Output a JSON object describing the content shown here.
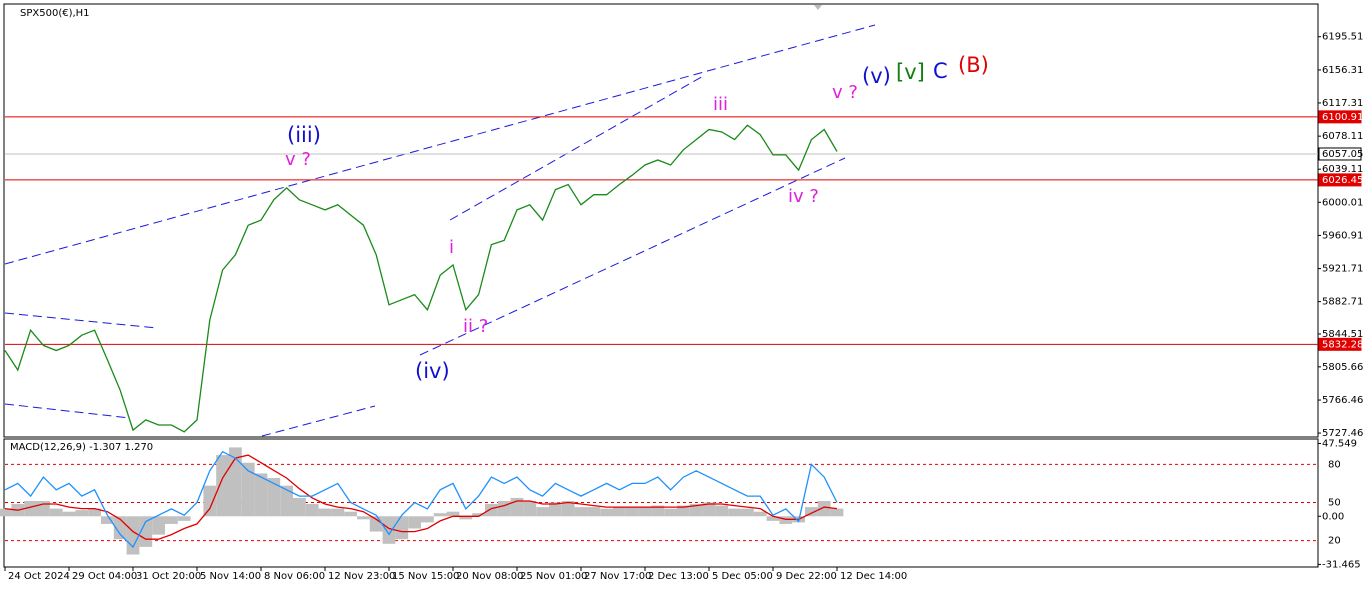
{
  "chart_data": [
    {
      "type": "line",
      "title": "SPX500(€),H1",
      "color": "#1a8a1a",
      "categories": [
        "24 Oct 2024",
        null,
        null,
        null,
        null,
        "29 Oct 04:00",
        null,
        null,
        null,
        null,
        "31 Oct 20:00",
        null,
        null,
        null,
        null,
        "5 Nov 14:00",
        null,
        null,
        null,
        null,
        "8 Nov 06:00",
        null,
        null,
        null,
        null,
        "12 Nov 23:00",
        null,
        null,
        null,
        null,
        "15 Nov 15:00",
        null,
        null,
        null,
        null,
        "20 Nov 08:00",
        null,
        null,
        null,
        null,
        "25 Nov 01:00",
        null,
        null,
        null,
        null,
        "27 Nov 17:00",
        null,
        null,
        null,
        null,
        "2 Dec 13:00",
        null,
        null,
        null,
        null,
        "5 Dec 05:00",
        null,
        null,
        null,
        null,
        "9 Dec 22:00",
        null,
        null,
        null,
        null,
        "12 Dec 14:00"
      ],
      "values": [
        5825,
        5802,
        5849,
        5831,
        5825,
        5831,
        5843,
        5849,
        5814,
        5778,
        5731,
        5743,
        5737,
        5737,
        5729,
        5743,
        5861,
        5920,
        5938,
        5973,
        5979,
        6003,
        6017,
        6003,
        5997,
        5991,
        5997,
        5985,
        5973,
        5938,
        5879,
        5885,
        5891,
        5873,
        5914,
        5926,
        5873,
        5891,
        5950,
        5955,
        5991,
        5997,
        5979,
        6015,
        6021,
        5997,
        6009,
        6009,
        6021,
        6032,
        6044,
        6050,
        6044,
        6062,
        6074,
        6086,
        6083,
        6074,
        6091,
        6080,
        6056,
        6056,
        6038,
        6074,
        6086,
        6060
      ],
      "ylim": [
        5724,
        6233
      ],
      "yticks": [
        6195.51,
        6156.31,
        6117.31,
        6078.11,
        6039.11,
        6000.01,
        5960.91,
        5921.71,
        5882.71,
        5844.51,
        5805.66,
        5766.46,
        5727.46
      ],
      "price_levels": [
        {
          "value": 6100.91,
          "color": "#e00000"
        },
        {
          "value": 6057.05,
          "color": "#c0c0c0"
        },
        {
          "value": 6026.45,
          "color": "#e00000"
        },
        {
          "value": 5832.28,
          "color": "#e00000"
        }
      ],
      "annotations": [
        {
          "text": "(iii)",
          "color": "#1010d0"
        },
        {
          "text": "v ?",
          "color": "#e020e0"
        },
        {
          "text": "(iv)",
          "color": "#1010d0"
        },
        {
          "text": "i",
          "color": "#e020e0"
        },
        {
          "text": "ii ?",
          "color": "#e020e0"
        },
        {
          "text": "iii",
          "color": "#e020e0"
        },
        {
          "text": "iv ?",
          "color": "#e020e0"
        },
        {
          "text": "v ?",
          "color": "#e020e0"
        },
        {
          "text": "(v)",
          "color": "#1010d0"
        },
        {
          "text": "[v]",
          "color": "#108010"
        },
        {
          "text": "C",
          "color": "#1010d0"
        },
        {
          "text": "(B)",
          "color": "#e00000"
        }
      ]
    },
    {
      "type": "macd",
      "title": "MACD(12,26,9) -1.307 1.270",
      "series": [
        {
          "kind": "histogram",
          "color": "#c0c0c0",
          "values": [
            5,
            8,
            10,
            10,
            5,
            3,
            4,
            5,
            -5,
            -15,
            -25,
            -20,
            -12,
            -5,
            -3,
            0,
            20,
            40,
            45,
            35,
            28,
            25,
            20,
            12,
            8,
            5,
            5,
            3,
            -2,
            -10,
            -18,
            -15,
            -8,
            -4,
            2,
            3,
            -2,
            2,
            8,
            10,
            12,
            10,
            6,
            9,
            10,
            6,
            6,
            5,
            6,
            6,
            6,
            7,
            5,
            7,
            8,
            9,
            7,
            5,
            5,
            3,
            -3,
            -5,
            -4,
            6,
            10,
            5
          ]
        },
        {
          "kind": "line",
          "color": "#e00000",
          "values": [
            5,
            4,
            6,
            8,
            8,
            6,
            5,
            5,
            3,
            -2,
            -10,
            -15,
            -15,
            -12,
            -8,
            -5,
            5,
            25,
            38,
            40,
            35,
            30,
            25,
            18,
            12,
            8,
            6,
            5,
            3,
            -2,
            -8,
            -10,
            -10,
            -8,
            -3,
            0,
            0,
            0,
            5,
            7,
            10,
            10,
            8,
            8,
            9,
            8,
            7,
            6,
            6,
            6,
            6,
            6,
            6,
            6,
            7,
            8,
            8,
            7,
            6,
            5,
            0,
            -2,
            -2,
            2,
            6,
            5
          ]
        },
        {
          "kind": "line",
          "axis": "y2",
          "color": "#1e90ff",
          "values": [
            60,
            65,
            55,
            70,
            60,
            65,
            55,
            60,
            40,
            25,
            15,
            35,
            40,
            45,
            40,
            50,
            75,
            90,
            85,
            75,
            70,
            65,
            60,
            55,
            55,
            60,
            65,
            50,
            45,
            40,
            25,
            40,
            50,
            45,
            60,
            65,
            45,
            55,
            70,
            65,
            70,
            60,
            55,
            65,
            60,
            55,
            60,
            65,
            60,
            65,
            65,
            70,
            60,
            70,
            75,
            70,
            65,
            60,
            55,
            55,
            40,
            45,
            35,
            80,
            70,
            50
          ]
        }
      ],
      "ylim": [
        -32.5,
        50.5
      ],
      "yticks": [
        47.549,
        {
          "value": 0,
          "label": "0.00"
        },
        -31.465
      ],
      "y2lim": [
        0,
        100
      ],
      "y2ticks": [
        80,
        50,
        20
      ]
    }
  ]
}
